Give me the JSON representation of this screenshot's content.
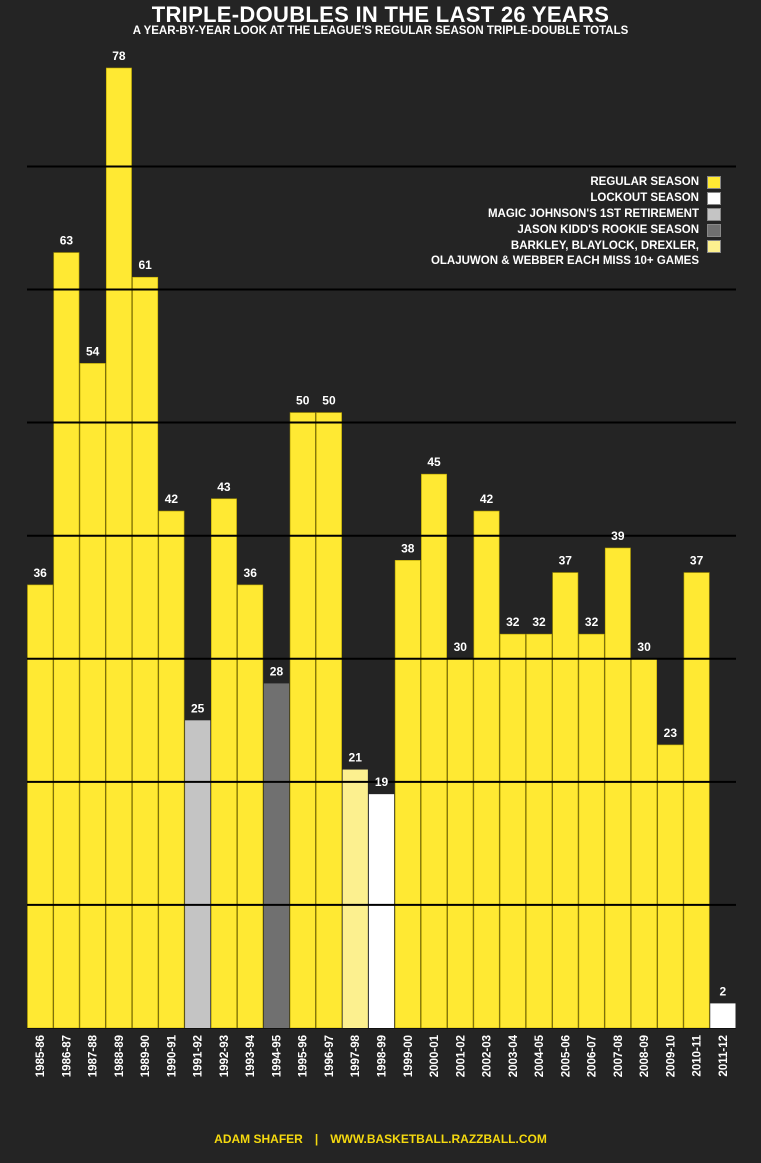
{
  "chart_data": {
    "type": "bar",
    "title": "TRIPLE-DOUBLES IN THE LAST 26 YEARS",
    "subtitle": "A YEAR-BY-YEAR LOOK AT THE LEAGUE'S REGULAR SEASON TRIPLE-DOUBLE TOTALS",
    "xlabel": "",
    "ylabel": "",
    "ylim": [
      0,
      78
    ],
    "grid": true,
    "legend_position": "top-right",
    "categories": [
      "1985-86",
      "1986-87",
      "1987-88",
      "1988-89",
      "1989-90",
      "1990-91",
      "1991-92",
      "1992-93",
      "1993-94",
      "1994-95",
      "1995-96",
      "1996-97",
      "1997-98",
      "1998-99",
      "1999-00",
      "2000-01",
      "2001-02",
      "2002-03",
      "2003-04",
      "2004-05",
      "2005-06",
      "2006-07",
      "2007-08",
      "2008-09",
      "2009-10",
      "2010-11",
      "2011-12"
    ],
    "values": [
      36,
      63,
      54,
      78,
      61,
      42,
      25,
      43,
      36,
      28,
      50,
      50,
      21,
      19,
      38,
      45,
      30,
      42,
      32,
      32,
      37,
      32,
      39,
      30,
      23,
      37,
      2
    ],
    "bar_kinds": [
      "regular",
      "regular",
      "regular",
      "regular",
      "regular",
      "regular",
      "magic",
      "regular",
      "regular",
      "kidd",
      "regular",
      "regular",
      "barkley",
      "lockout",
      "regular",
      "regular",
      "regular",
      "regular",
      "regular",
      "regular",
      "regular",
      "regular",
      "regular",
      "regular",
      "regular",
      "regular",
      "lockout"
    ],
    "colors": {
      "regular": "#ffe933",
      "lockout": "#ffffff",
      "magic": "#c4c4c4",
      "kidd": "#707070",
      "barkley": "#fcf08f",
      "background": "#242424",
      "gridline": "#000000",
      "footer": "#f5d90f"
    },
    "legend": [
      {
        "key": "regular",
        "lines": [
          "REGULAR SEASON"
        ]
      },
      {
        "key": "lockout",
        "lines": [
          "LOCKOUT SEASON"
        ]
      },
      {
        "key": "magic",
        "lines": [
          "MAGIC JOHNSON'S 1ST RETIREMENT"
        ]
      },
      {
        "key": "kidd",
        "lines": [
          "JASON KIDD'S ROOKIE SEASON"
        ]
      },
      {
        "key": "barkley",
        "lines": [
          "BARKLEY, BLAYLOCK, DREXLER,",
          "OLAJUWON & WEBBER EACH MISS 10+ GAMES"
        ]
      }
    ]
  },
  "footer": {
    "author": "ADAM SHAFER",
    "separator": "|",
    "url": "WWW.BASKETBALL.RAZZBALL.COM"
  }
}
